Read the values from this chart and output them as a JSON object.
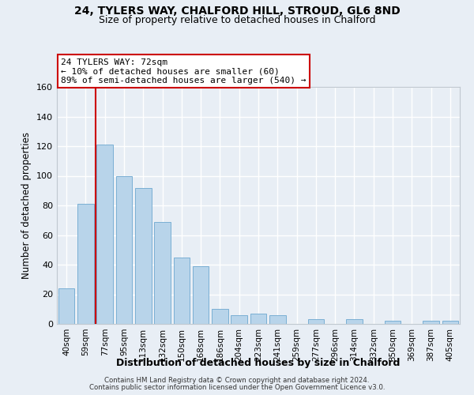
{
  "title": "24, TYLERS WAY, CHALFORD HILL, STROUD, GL6 8ND",
  "subtitle": "Size of property relative to detached houses in Chalford",
  "xlabel": "Distribution of detached houses by size in Chalford",
  "ylabel": "Number of detached properties",
  "bar_labels": [
    "40sqm",
    "59sqm",
    "77sqm",
    "95sqm",
    "113sqm",
    "132sqm",
    "150sqm",
    "168sqm",
    "186sqm",
    "204sqm",
    "223sqm",
    "241sqm",
    "259sqm",
    "277sqm",
    "296sqm",
    "314sqm",
    "332sqm",
    "350sqm",
    "369sqm",
    "387sqm",
    "405sqm"
  ],
  "bar_values": [
    24,
    81,
    121,
    100,
    92,
    69,
    45,
    39,
    10,
    6,
    7,
    6,
    0,
    3,
    0,
    3,
    0,
    2,
    0,
    2,
    2
  ],
  "bar_color": "#b8d4ea",
  "bar_edge_color": "#7aafd4",
  "highlight_line_color": "#cc0000",
  "ylim": [
    0,
    160
  ],
  "yticks": [
    0,
    20,
    40,
    60,
    80,
    100,
    120,
    140,
    160
  ],
  "annotation_title": "24 TYLERS WAY: 72sqm",
  "annotation_line1": "← 10% of detached houses are smaller (60)",
  "annotation_line2": "89% of semi-detached houses are larger (540) →",
  "annotation_box_color": "#ffffff",
  "annotation_box_edge": "#cc0000",
  "footer1": "Contains HM Land Registry data © Crown copyright and database right 2024.",
  "footer2": "Contains public sector information licensed under the Open Government Licence v3.0.",
  "background_color": "#e8eef5",
  "plot_background": "#e8eef5",
  "grid_color": "#ffffff",
  "title_fontsize": 10,
  "subtitle_fontsize": 9
}
